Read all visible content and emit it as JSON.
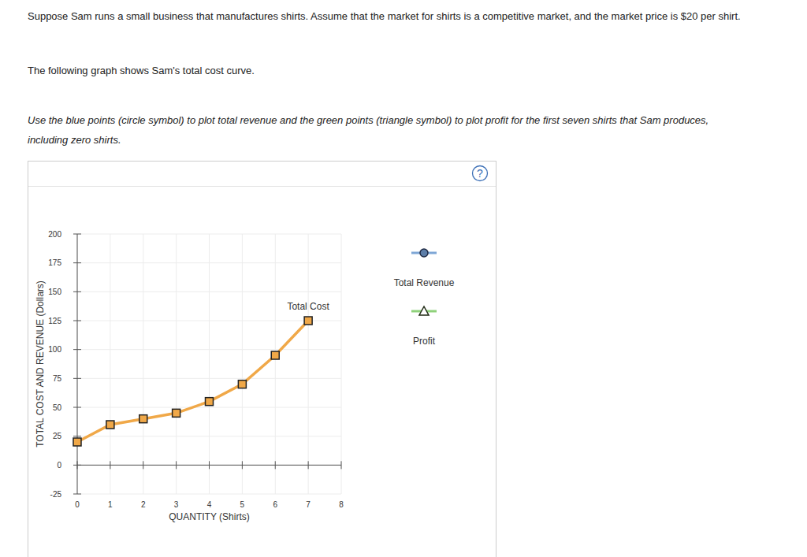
{
  "page": {
    "paragraphs": [
      "Suppose Sam runs a small business that manufactures shirts. Assume that the market for shirts is a competitive market, and the market price is $20 per shirt.",
      "The following graph shows Sam's total cost curve.",
      "Use the blue points (circle symbol) to plot total revenue and the green points (triangle symbol) to plot profit for the first seven shirts that Sam produces, including zero shirts."
    ],
    "help_icon": "?"
  },
  "chart_data": {
    "type": "line",
    "x_label": "QUANTITY (Shirts)",
    "y_label": "TOTAL COST AND REVENUE (Dollars)",
    "x": [
      0,
      1,
      2,
      3,
      4,
      5,
      6,
      7
    ],
    "series": [
      {
        "name": "Total Cost",
        "color": "#f0a848",
        "marker": "square",
        "values": [
          20,
          35,
          40,
          45,
          55,
          70,
          95,
          125
        ]
      },
      {
        "name": "Total Revenue",
        "color": "#7fa7d6",
        "marker": "circle",
        "values": [
          null,
          null,
          null,
          null,
          null,
          null,
          null,
          null
        ]
      },
      {
        "name": "Profit",
        "color": "#8fd17a",
        "marker": "triangle",
        "values": [
          null,
          null,
          null,
          null,
          null,
          null,
          null,
          null
        ]
      }
    ],
    "xlim": [
      0,
      8
    ],
    "xticks": [
      0,
      1,
      2,
      3,
      4,
      5,
      6,
      7,
      8
    ],
    "ylim": [
      -25,
      200
    ],
    "yticks": [
      -25,
      0,
      25,
      50,
      75,
      100,
      125,
      150,
      175,
      200
    ],
    "grid": true
  }
}
